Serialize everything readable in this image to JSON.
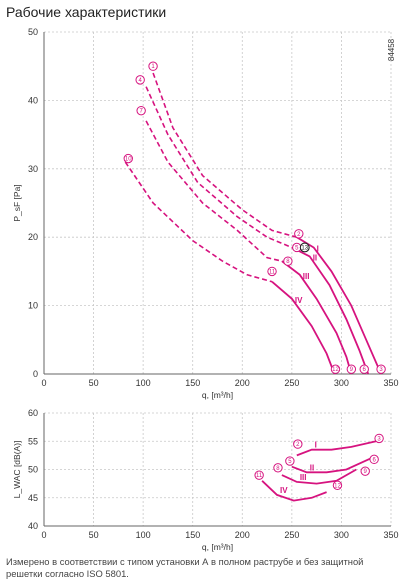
{
  "page": {
    "title": "Рабочие характеристики",
    "footnote": "Измерено в соответствии с типом установки А в полном раструбе и без защитной решетки согласно ISO 5801."
  },
  "colors": {
    "accent": "#d6137f",
    "grid": "#c8c8c8",
    "axis": "#666666"
  },
  "chart_data": [
    {
      "type": "line",
      "id_label": "84458",
      "xlabel": "q, [m³/h]",
      "ylabel": "P_sF [Pa]",
      "xlim": [
        0,
        350
      ],
      "ylim": [
        0,
        50
      ],
      "xticks": [
        0,
        50,
        100,
        150,
        200,
        250,
        300,
        350
      ],
      "yticks": [
        0,
        10,
        20,
        30,
        40,
        50
      ],
      "grid": true,
      "series": [
        {
          "name": "I",
          "dashed": [
            [
              110,
              44
            ],
            [
              130,
              36
            ],
            [
              160,
              29
            ],
            [
              200,
              24
            ],
            [
              230,
              21
            ],
            [
              255,
              20
            ]
          ],
          "solid": [
            [
              255,
              20
            ],
            [
              272,
              18.5
            ],
            [
              290,
              15
            ],
            [
              310,
              10
            ],
            [
              325,
              5
            ],
            [
              340,
              0
            ]
          ]
        },
        {
          "name": "II",
          "dashed": [
            [
              103,
              42
            ],
            [
              125,
              35
            ],
            [
              155,
              28
            ],
            [
              195,
              23
            ],
            [
              225,
              20
            ],
            [
              250,
              18.5
            ]
          ],
          "solid": [
            [
              250,
              18.5
            ],
            [
              268,
              17.2
            ],
            [
              288,
              13
            ],
            [
              305,
              8
            ],
            [
              318,
              3.5
            ],
            [
              327,
              0
            ]
          ]
        },
        {
          "name": "III",
          "dashed": [
            [
              103,
              37
            ],
            [
              125,
              31
            ],
            [
              160,
              25
            ],
            [
              195,
              21
            ],
            [
              225,
              17
            ],
            [
              240,
              16.5
            ]
          ],
          "solid": [
            [
              240,
              16.5
            ],
            [
              258,
              14.5
            ],
            [
              275,
              11
            ],
            [
              295,
              6
            ],
            [
              305,
              2.5
            ],
            [
              310,
              0
            ]
          ]
        },
        {
          "name": "IV",
          "dashed": [
            [
              82,
              31
            ],
            [
              110,
              25
            ],
            [
              150,
              19.5
            ],
            [
              180,
              16.5
            ],
            [
              205,
              14.5
            ],
            [
              230,
              13.5
            ]
          ],
          "solid": [
            [
              230,
              13.5
            ],
            [
              250,
              11
            ],
            [
              270,
              7
            ],
            [
              285,
              3
            ],
            [
              293,
              0
            ]
          ]
        }
      ],
      "markers": [
        {
          "n": "1",
          "x": 110,
          "y": 45
        },
        {
          "n": "2",
          "x": 257,
          "y": 20.5
        },
        {
          "n": "3",
          "x": 340,
          "y": 0.7
        },
        {
          "n": "4",
          "x": 97,
          "y": 43
        },
        {
          "n": "5",
          "x": 255,
          "y": 18.5
        },
        {
          "n": "6",
          "x": 323,
          "y": 0.7
        },
        {
          "n": "7",
          "x": 98,
          "y": 38.5
        },
        {
          "n": "8",
          "x": 246,
          "y": 16.5
        },
        {
          "n": "9",
          "x": 310,
          "y": 0.7
        },
        {
          "n": "10",
          "x": 85,
          "y": 31.5
        },
        {
          "n": "11",
          "x": 230,
          "y": 15
        },
        {
          "n": "12",
          "x": 294,
          "y": 0.7
        }
      ],
      "operating_point": {
        "n": "13",
        "x": 263,
        "y": 18.5
      }
    },
    {
      "type": "line",
      "xlabel": "q, [m³/h]",
      "ylabel": "L_WAC [dB(A)]",
      "xlim": [
        0,
        350
      ],
      "ylim": [
        40,
        60
      ],
      "xticks": [
        0,
        50,
        100,
        150,
        200,
        250,
        300,
        350
      ],
      "yticks": [
        40,
        45,
        50,
        55,
        60
      ],
      "grid": true,
      "series": [
        {
          "name": "I",
          "solid": [
            [
              255,
              52.5
            ],
            [
              270,
              53.5
            ],
            [
              290,
              53.5
            ],
            [
              310,
              54
            ],
            [
              335,
              55
            ]
          ]
        },
        {
          "name": "II",
          "solid": [
            [
              250,
              50.5
            ],
            [
              265,
              49.5
            ],
            [
              285,
              49.5
            ],
            [
              305,
              50
            ],
            [
              330,
              52
            ]
          ]
        },
        {
          "name": "III",
          "solid": [
            [
              240,
              49
            ],
            [
              255,
              47.8
            ],
            [
              275,
              47.5
            ],
            [
              295,
              48
            ],
            [
              315,
              50
            ]
          ]
        },
        {
          "name": "IV",
          "solid": [
            [
              220,
              48
            ],
            [
              235,
              45.5
            ],
            [
              252,
              44.5
            ],
            [
              270,
              45
            ],
            [
              285,
              46
            ]
          ]
        }
      ],
      "markers": [
        {
          "n": "2",
          "x": 256,
          "y": 54.5
        },
        {
          "n": "3",
          "x": 338,
          "y": 55.5
        },
        {
          "n": "5",
          "x": 248,
          "y": 51.5
        },
        {
          "n": "6",
          "x": 333,
          "y": 51.8
        },
        {
          "n": "8",
          "x": 236,
          "y": 50.3
        },
        {
          "n": "9",
          "x": 324,
          "y": 49.7
        },
        {
          "n": "11",
          "x": 217,
          "y": 49
        },
        {
          "n": "12",
          "x": 296,
          "y": 47.2
        }
      ]
    }
  ]
}
